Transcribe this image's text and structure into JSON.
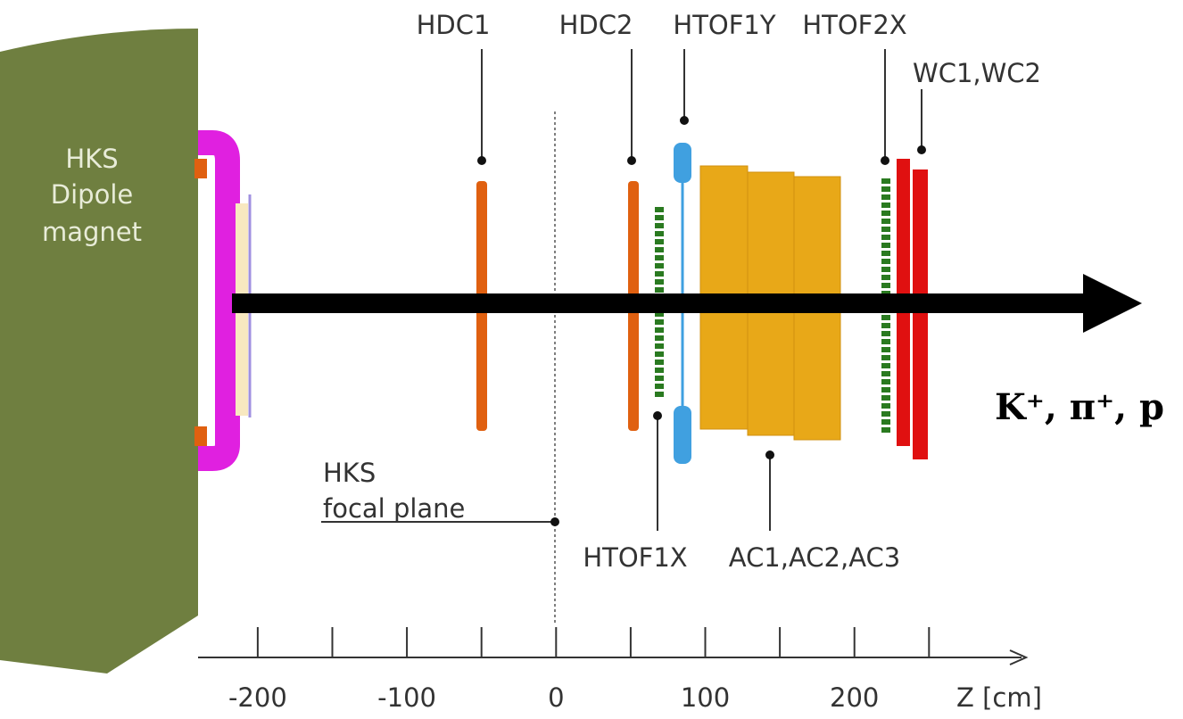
{
  "labels": {
    "hdc1": "HDC1",
    "hdc2": "HDC2",
    "htof1y": "HTOF1Y",
    "htof2x": "HTOF2X",
    "wc": "WC1,WC2",
    "htof1x": "HTOF1X",
    "ac": "AC1,AC2,AC3"
  },
  "magnet": [
    "HKS",
    "Dipole",
    "magnet"
  ],
  "focal_plane": [
    "HKS",
    "focal plane"
  ],
  "particles": "K⁺, π⁺, p",
  "axis": {
    "label": "Z [cm]",
    "xlim": [
      -240,
      315
    ],
    "ticks": [
      -200,
      -100,
      0,
      100,
      200
    ],
    "minor_ticks": [
      -150,
      -50,
      50,
      150,
      250
    ]
  }
}
